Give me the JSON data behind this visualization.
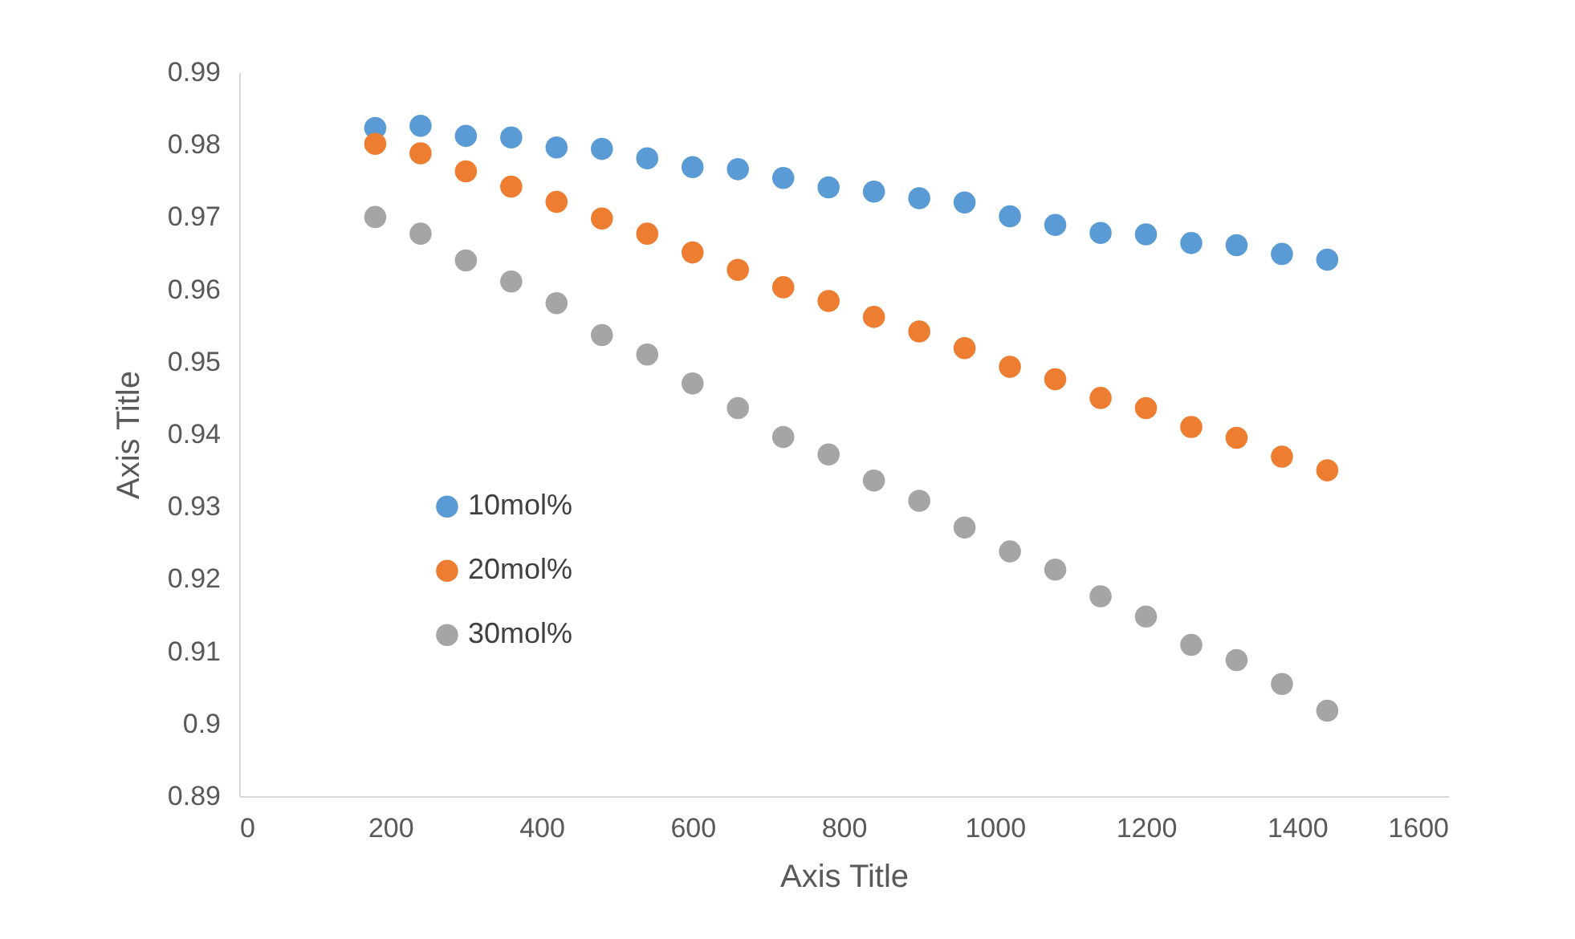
{
  "chart_data": {
    "type": "scatter",
    "xlabel": "Axis Title",
    "ylabel": "Axis Title",
    "x": [
      180,
      240,
      300,
      360,
      420,
      480,
      540,
      600,
      660,
      720,
      780,
      840,
      900,
      960,
      1020,
      1080,
      1140,
      1200,
      1260,
      1320,
      1380,
      1440
    ],
    "series": [
      {
        "name": "10mol%",
        "color": "#5b9bd5",
        "values": [
          0.9823,
          0.9826,
          0.9812,
          0.981,
          0.9796,
          0.9794,
          0.9781,
          0.9769,
          0.9766,
          0.9754,
          0.9741,
          0.9735,
          0.9726,
          0.972,
          0.9701,
          0.9689,
          0.9678,
          0.9676,
          0.9664,
          0.9661,
          0.9649,
          0.9641
        ]
      },
      {
        "name": "20mol%",
        "color": "#ed7d31",
        "values": [
          0.9801,
          0.9788,
          0.9763,
          0.9742,
          0.9721,
          0.9698,
          0.9677,
          0.9651,
          0.9627,
          0.9603,
          0.9584,
          0.9562,
          0.9542,
          0.9519,
          0.9493,
          0.9476,
          0.945,
          0.9436,
          0.941,
          0.9395,
          0.9369,
          0.935
        ]
      },
      {
        "name": "30mol%",
        "color": "#a5a5a5",
        "values": [
          0.97,
          0.9677,
          0.964,
          0.9611,
          0.9581,
          0.9537,
          0.951,
          0.947,
          0.9436,
          0.9396,
          0.9372,
          0.9336,
          0.9308,
          0.9271,
          0.9238,
          0.9213,
          0.9176,
          0.9148,
          0.9109,
          0.9088,
          0.9055,
          0.9018
        ]
      }
    ],
    "xlim": [
      0,
      1600
    ],
    "xticks": [
      0,
      200,
      400,
      600,
      800,
      1000,
      1200,
      1400,
      1600
    ],
    "ylim": [
      0.89,
      0.99
    ],
    "yticks": [
      0.89,
      0.9,
      0.91,
      0.92,
      0.93,
      0.94,
      0.95,
      0.96,
      0.97,
      0.98,
      0.99
    ],
    "grid": false,
    "legend": "left",
    "marker": "circle"
  }
}
